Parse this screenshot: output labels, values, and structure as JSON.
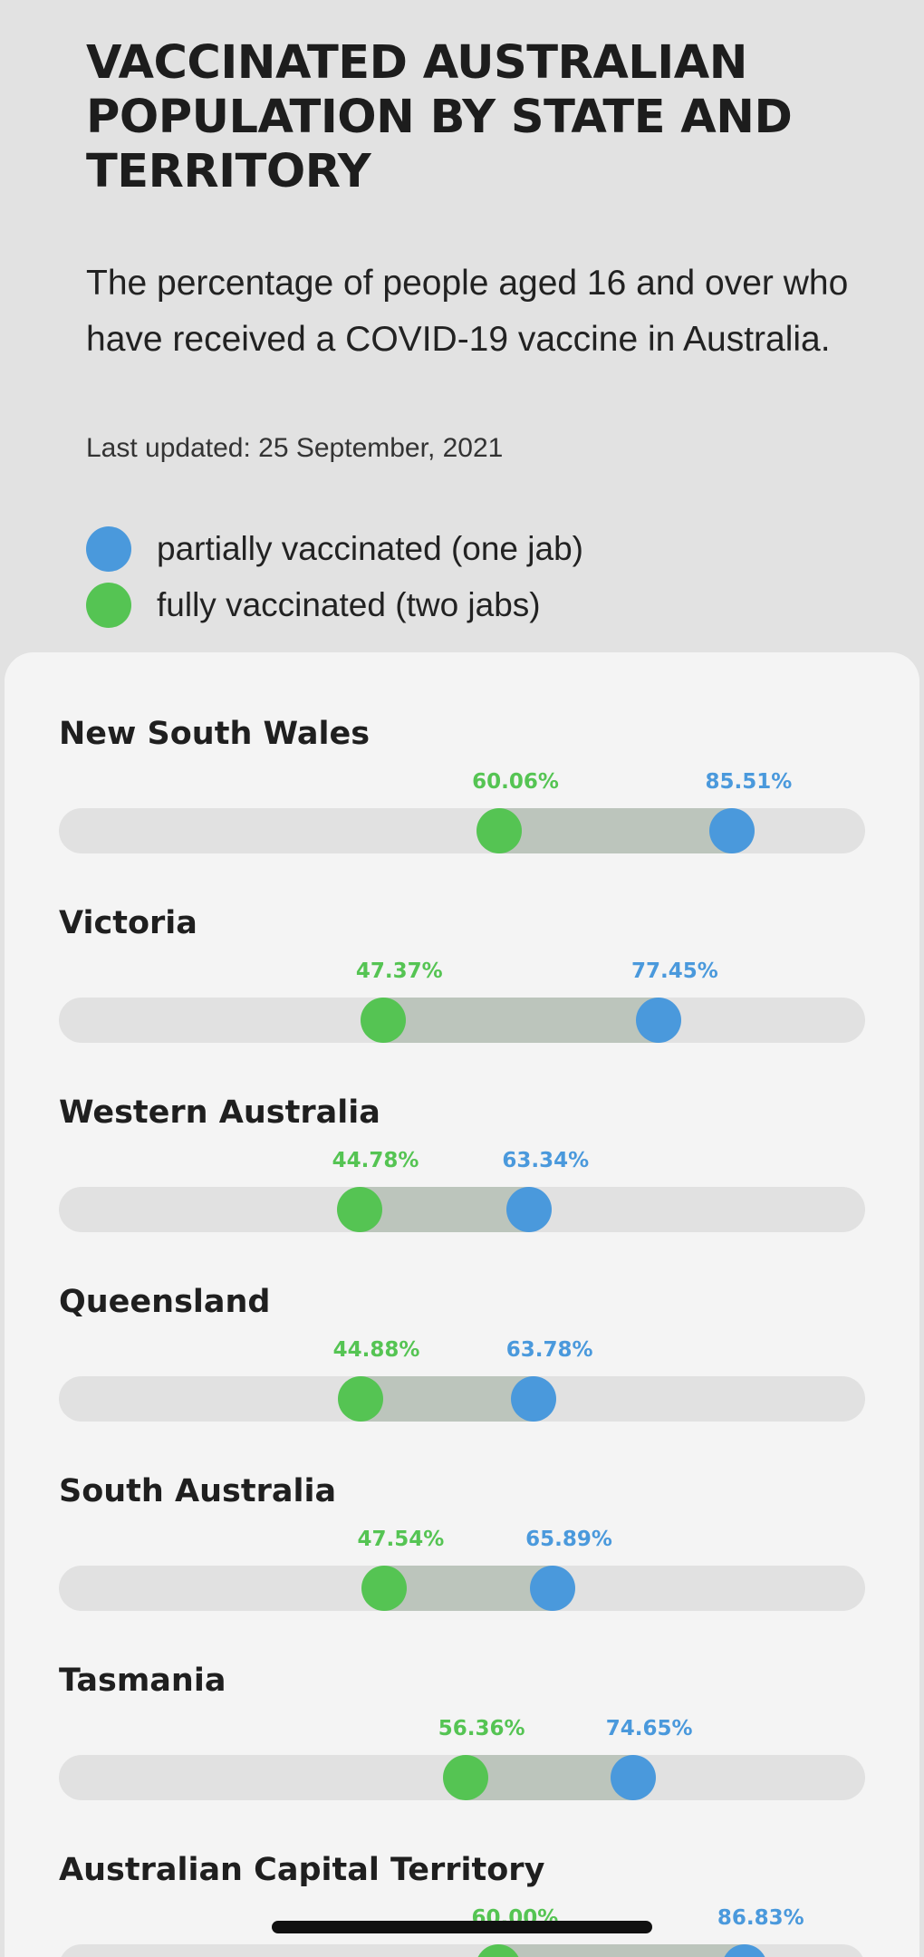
{
  "header": {
    "title": "VACCINATED AUSTRALIAN POPULATION BY STATE AND TERRITORY",
    "subtitle": "The percentage of people aged 16 and over who have received a COVID-19 vaccine in Australia.",
    "last_updated": "Last updated: 25 September, 2021"
  },
  "legend": [
    {
      "label": "partially vaccinated (one jab)",
      "color": "#4a99dc"
    },
    {
      "label": "fully vaccinated (two jabs)",
      "color": "#55c453"
    }
  ],
  "chart_data": {
    "type": "dumbbell",
    "title": "VACCINATED AUSTRALIAN POPULATION BY STATE AND TERRITORY",
    "xlim": [
      0,
      100
    ],
    "series": [
      {
        "name": "partially vaccinated (one jab)",
        "color": "#4a99dc"
      },
      {
        "name": "fully vaccinated (two jabs)",
        "color": "#55c453"
      }
    ],
    "categories": [
      "New South Wales",
      "Victoria",
      "Western Australia",
      "Queensland",
      "South Australia",
      "Tasmania",
      "Australian Capital Territory"
    ],
    "rows": [
      {
        "name": "New South Wales",
        "full": 60.06,
        "full_label": "60.06%",
        "partial": 85.51,
        "partial_label": "85.51%"
      },
      {
        "name": "Victoria",
        "full": 47.37,
        "full_label": "47.37%",
        "partial": 77.45,
        "partial_label": "77.45%"
      },
      {
        "name": "Western Australia",
        "full": 44.78,
        "full_label": "44.78%",
        "partial": 63.34,
        "partial_label": "63.34%"
      },
      {
        "name": "Queensland",
        "full": 44.88,
        "full_label": "44.88%",
        "partial": 63.78,
        "partial_label": "63.78%"
      },
      {
        "name": "South Australia",
        "full": 47.54,
        "full_label": "47.54%",
        "partial": 65.89,
        "partial_label": "65.89%"
      },
      {
        "name": "Tasmania",
        "full": 56.36,
        "full_label": "56.36%",
        "partial": 74.65,
        "partial_label": "74.65%"
      },
      {
        "name": "Australian Capital Territory",
        "full": 60.0,
        "full_label": "60.00%",
        "partial": 86.83,
        "partial_label": "86.83%"
      }
    ],
    "colors": {
      "partial": "#4a99dc",
      "full": "#55c453",
      "range": "#bcc5bc",
      "track": "#e1e1e1"
    }
  }
}
